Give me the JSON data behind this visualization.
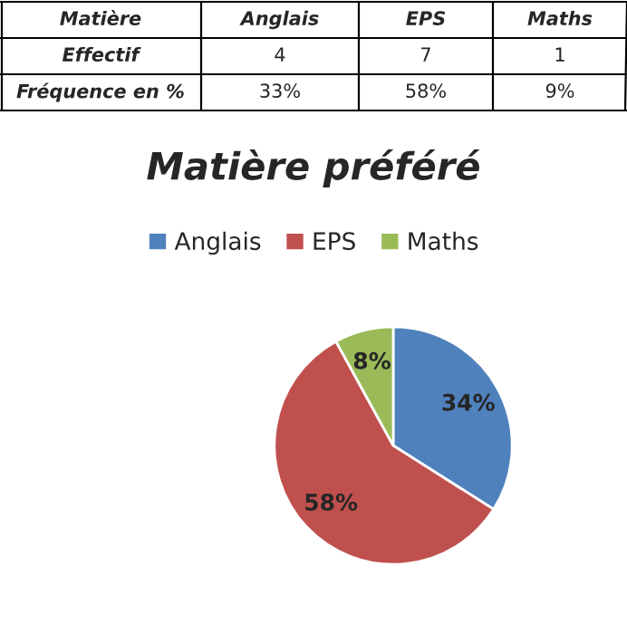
{
  "chart_data": {
    "type": "pie",
    "title": "Matière préféré",
    "categories": [
      "Anglais",
      "EPS",
      "Maths"
    ],
    "values": [
      34,
      58,
      8
    ],
    "colors": [
      "#4f81bd",
      "#c0504d",
      "#9bbb59"
    ],
    "value_labels": [
      "34%",
      "58%",
      "8%"
    ],
    "legend": "top",
    "annotations": [
      "Matière",
      "Anglais",
      "EPS",
      "Maths",
      "Effectif",
      "4",
      "7",
      "1",
      "Fréquence en %",
      "33%",
      "58%",
      "9%"
    ]
  }
}
